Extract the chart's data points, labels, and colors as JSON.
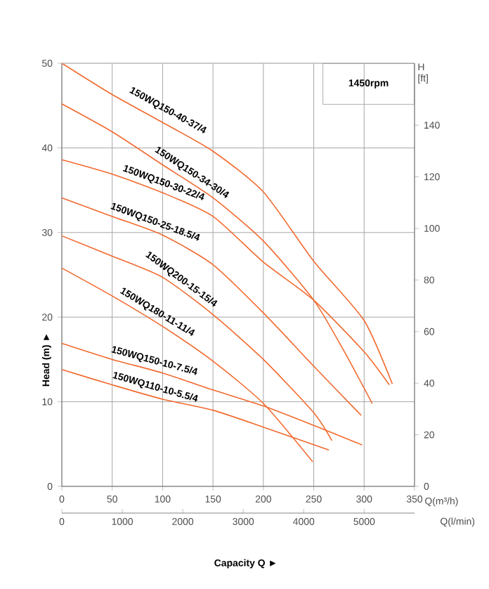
{
  "chart_data": {
    "type": "line",
    "xlabel": "Q(m³/h)",
    "ylabel": "Head (m) ►",
    "y2label": "H [ft]",
    "x2label": "Q(l/min)",
    "annotations": [
      "1450rpm",
      "Capacity Q ►"
    ],
    "xlim": [
      0,
      350
    ],
    "xticks": [
      0,
      50,
      100,
      150,
      200,
      250,
      300,
      350
    ],
    "ylim": [
      0,
      50
    ],
    "yticks": [
      0,
      10,
      20,
      30,
      40,
      50
    ],
    "y2lim": [
      0,
      164
    ],
    "y2ticks": [
      0,
      20,
      40,
      60,
      80,
      100,
      120,
      140
    ],
    "x2lim": [
      0,
      5833
    ],
    "x2ticks": [
      0,
      1000,
      2000,
      3000,
      4000,
      5000
    ],
    "grid": true,
    "legend": false,
    "marker": "none",
    "line_style": "solid",
    "series": [
      {
        "name": "150WQ150-40-37/4",
        "color": "#f26a2e",
        "x": [
          0,
          50,
          100,
          150,
          200,
          250,
          300,
          328
        ],
        "values": [
          50,
          46.3,
          43,
          39.6,
          34.8,
          26.6,
          19.6,
          12.1
        ]
      },
      {
        "name": "150WQ150-34-30/4",
        "color": "#f26a2e",
        "x": [
          0,
          50,
          100,
          150,
          200,
          250,
          280,
          308
        ],
        "values": [
          45.2,
          41.9,
          38,
          34.1,
          29,
          22,
          16,
          9.8
        ]
      },
      {
        "name": "150WQ150-30-22/4",
        "color": "#f26a2e",
        "x": [
          0,
          50,
          100,
          150,
          200,
          250,
          300,
          325
        ],
        "values": [
          38.6,
          36.9,
          34.7,
          31.9,
          26.5,
          22,
          15.9,
          12
        ]
      },
      {
        "name": "150WQ150-25-18.5/4",
        "color": "#f26a2e",
        "x": [
          0,
          50,
          100,
          150,
          200,
          250,
          297
        ],
        "values": [
          34.1,
          31.9,
          29.7,
          26.2,
          20.5,
          14.2,
          8.4
        ]
      },
      {
        "name": "150WQ200-15-15/4",
        "color": "#f26a2e",
        "x": [
          0,
          50,
          100,
          150,
          200,
          250,
          268
        ],
        "values": [
          29.6,
          27.2,
          24.7,
          20.3,
          15,
          8.7,
          5.4
        ]
      },
      {
        "name": "150WQ180-11-11/4",
        "color": "#f26a2e",
        "x": [
          0,
          50,
          100,
          150,
          200,
          249
        ],
        "values": [
          25.8,
          22.5,
          18.9,
          14.8,
          9.8,
          2.9
        ]
      },
      {
        "name": "150WQ150-10-7.5/4",
        "color": "#f26a2e",
        "x": [
          0,
          50,
          100,
          150,
          200,
          250,
          298
        ],
        "values": [
          16.9,
          15,
          13.4,
          11.4,
          9.5,
          7.2,
          4.9
        ]
      },
      {
        "name": "150WQ110-10-5.5/4",
        "color": "#f26a2e",
        "x": [
          0,
          50,
          100,
          150,
          200,
          265
        ],
        "values": [
          13.8,
          12,
          10.3,
          9,
          7,
          4.3
        ]
      }
    ]
  }
}
